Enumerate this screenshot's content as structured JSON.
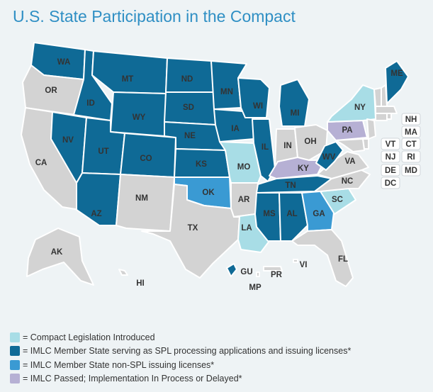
{
  "title": "U.S. State Participation in the Compact",
  "colors": {
    "introduced": "#a8dde6",
    "member_spl": "#0f6a96",
    "member_non_spl": "#3a9ad3",
    "passed_delayed": "#b6b0d4",
    "none": "#d3d3d3",
    "background": "#eef3f5"
  },
  "states": {
    "WA": "member_spl",
    "OR": "none",
    "CA": "none",
    "NV": "member_spl",
    "ID": "member_spl",
    "MT": "member_spl",
    "WY": "member_spl",
    "UT": "member_spl",
    "AZ": "member_spl",
    "CO": "member_spl",
    "NM": "none",
    "ND": "member_spl",
    "SD": "member_spl",
    "NE": "member_spl",
    "KS": "member_spl",
    "OK": "member_non_spl",
    "TX": "none",
    "MN": "member_spl",
    "IA": "member_spl",
    "MO": "introduced",
    "AR": "none",
    "LA": "introduced",
    "WI": "member_spl",
    "IL": "member_spl",
    "MI": "member_spl",
    "IN": "none",
    "OH": "none",
    "KY": "passed_delayed",
    "TN": "member_spl",
    "MS": "member_spl",
    "AL": "member_spl",
    "GA": "member_non_spl",
    "FL": "none",
    "SC": "introduced",
    "NC": "none",
    "VA": "none",
    "WV": "member_spl",
    "PA": "passed_delayed",
    "NY": "introduced",
    "ME": "member_spl",
    "AK": "none",
    "HI": "none",
    "GU": "member_spl",
    "PR": "none",
    "VI": "none",
    "MP": "none"
  },
  "small_states": [
    "NH",
    "MA",
    "VT",
    "CT",
    "NJ",
    "RI",
    "DE",
    "MD",
    "DC"
  ],
  "legend": [
    {
      "key": "introduced",
      "label": "= Compact Legislation Introduced"
    },
    {
      "key": "member_spl",
      "label": "= IMLC Member State serving as SPL processing applications and issuing licenses*"
    },
    {
      "key": "member_non_spl",
      "label": "= IMLC Member State non-SPL issuing licenses*"
    },
    {
      "key": "passed_delayed",
      "label": "= IMLC Passed; Implementation In Process or Delayed*"
    }
  ]
}
